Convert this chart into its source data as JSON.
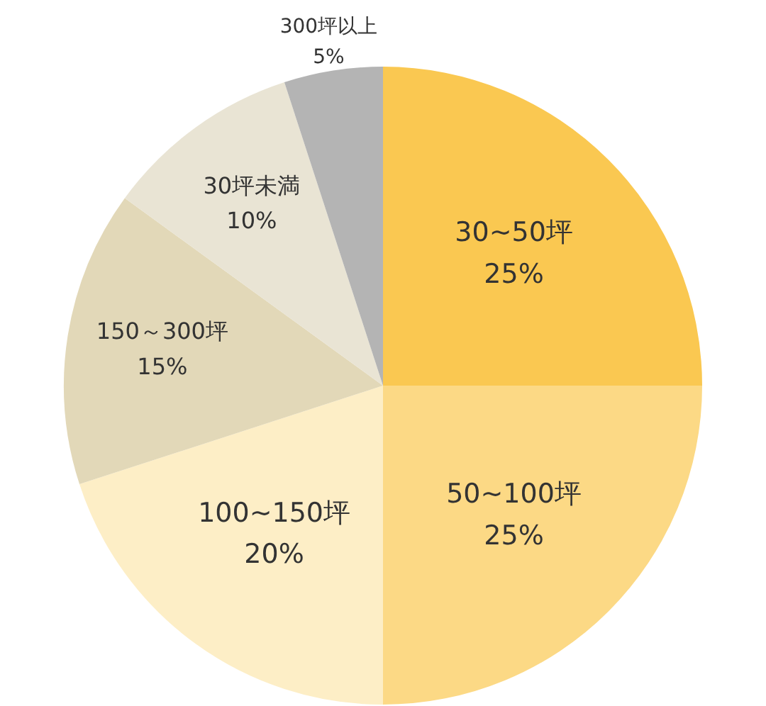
{
  "chart_data": {
    "type": "pie",
    "categories": [
      "30~50坪",
      "50~100坪",
      "100~150坪",
      "150～300坪",
      "30坪未満",
      "300坪以上"
    ],
    "values": [
      25,
      25,
      20,
      15,
      10,
      5
    ],
    "value_labels": [
      "25%",
      "25%",
      "20%",
      "15%",
      "10%",
      "5%"
    ],
    "colors": [
      "#fac851",
      "#fcd985",
      "#fdeec6",
      "#e2d8b8",
      "#e9e4d4",
      "#b4b4b4"
    ],
    "legend": false
  }
}
